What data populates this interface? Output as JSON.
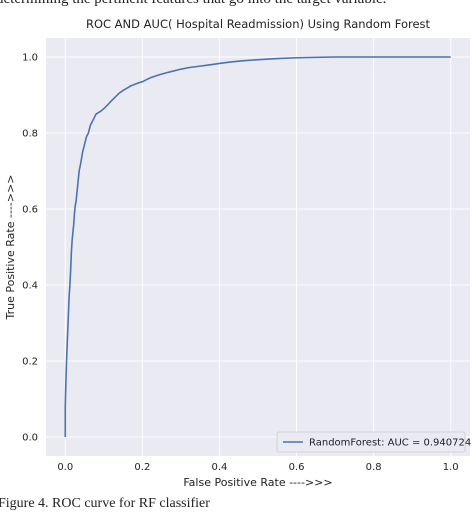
{
  "page": {
    "top_text": "determining the pertinent features that go into the target variable.",
    "bottom_text": "Figure 4. ROC curve for RF classifier"
  },
  "colors": {
    "plot_background": "#eaeaf2",
    "grid": "#ffffff",
    "series": "#4c72b0"
  },
  "chart_data": {
    "type": "line",
    "title": "ROC AND AUC( Hospital Readmission) Using Random Forest",
    "xlabel": "False Positive Rate ---->>>",
    "ylabel": "True Positive Rate ---->>>",
    "xlim": [
      -0.05,
      1.05
    ],
    "ylim": [
      -0.05,
      1.05
    ],
    "xticks": [
      "0.0",
      "0.2",
      "0.4",
      "0.6",
      "0.8",
      "1.0"
    ],
    "yticks": [
      "0.0",
      "0.2",
      "0.4",
      "0.6",
      "0.8",
      "1.0"
    ],
    "grid": true,
    "legend_position": "lower-right",
    "series": [
      {
        "name": "RandomForest: AUC = 0.940724",
        "x": [
          0.0,
          0.0,
          0.002,
          0.004,
          0.006,
          0.008,
          0.01,
          0.012,
          0.014,
          0.016,
          0.018,
          0.02,
          0.022,
          0.024,
          0.026,
          0.028,
          0.03,
          0.033,
          0.036,
          0.04,
          0.045,
          0.05,
          0.055,
          0.06,
          0.065,
          0.07,
          0.075,
          0.08,
          0.085,
          0.09,
          0.095,
          0.1,
          0.11,
          0.12,
          0.13,
          0.14,
          0.15,
          0.16,
          0.17,
          0.18,
          0.19,
          0.2,
          0.21,
          0.22,
          0.24,
          0.26,
          0.28,
          0.3,
          0.32,
          0.35,
          0.38,
          0.4,
          0.43,
          0.46,
          0.5,
          0.55,
          0.6,
          0.65,
          0.7,
          0.8,
          0.9,
          1.0
        ],
        "y": [
          0.0,
          0.08,
          0.16,
          0.22,
          0.27,
          0.32,
          0.37,
          0.4,
          0.44,
          0.49,
          0.52,
          0.54,
          0.56,
          0.59,
          0.61,
          0.62,
          0.64,
          0.67,
          0.7,
          0.72,
          0.75,
          0.77,
          0.79,
          0.8,
          0.82,
          0.83,
          0.84,
          0.85,
          0.853,
          0.856,
          0.86,
          0.864,
          0.874,
          0.885,
          0.895,
          0.905,
          0.912,
          0.918,
          0.924,
          0.928,
          0.932,
          0.935,
          0.94,
          0.945,
          0.952,
          0.958,
          0.963,
          0.968,
          0.972,
          0.976,
          0.98,
          0.983,
          0.987,
          0.99,
          0.993,
          0.996,
          0.998,
          0.999,
          1.0,
          1.0,
          1.0,
          1.0
        ]
      }
    ]
  }
}
